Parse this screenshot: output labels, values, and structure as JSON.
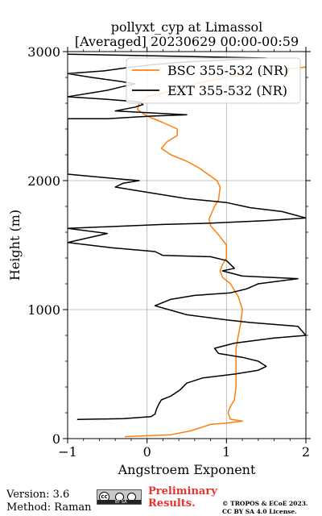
{
  "chart_data": {
    "type": "line",
    "title": "pollyxt_cyp at Limassol",
    "subtitle": "[Averaged] 20230629 00:00-00:59",
    "xlabel": "Angstroem Exponent",
    "ylabel": "Height (m)",
    "xlim": [
      -1,
      2
    ],
    "ylim": [
      0,
      3000
    ],
    "x_ticks": [
      "−1",
      "0",
      "1",
      "2"
    ],
    "y_ticks": [
      "0",
      "1000",
      "2000",
      "3000"
    ],
    "x_tick_values": [
      -1,
      0,
      1,
      2
    ],
    "y_tick_values": [
      0,
      1000,
      2000,
      3000
    ],
    "grid": true,
    "legend_position": "top-right",
    "series": [
      {
        "name": "BSC 355-532 (NR)",
        "color": "#ff7f0e",
        "points": [
          [
            -0.28,
            15
          ],
          [
            0.3,
            30
          ],
          [
            0.55,
            60
          ],
          [
            0.75,
            100
          ],
          [
            0.8,
            110
          ],
          [
            1.0,
            120
          ],
          [
            1.2,
            135
          ],
          [
            1.05,
            150
          ],
          [
            1.02,
            200
          ],
          [
            1.05,
            250
          ],
          [
            1.1,
            300
          ],
          [
            1.12,
            400
          ],
          [
            1.12,
            500
          ],
          [
            1.12,
            600
          ],
          [
            1.12,
            700
          ],
          [
            1.15,
            800
          ],
          [
            1.18,
            900
          ],
          [
            1.2,
            1000
          ],
          [
            1.15,
            1100
          ],
          [
            1.1,
            1150
          ],
          [
            1.05,
            1200
          ],
          [
            0.95,
            1250
          ],
          [
            0.92,
            1300
          ],
          [
            0.95,
            1350
          ],
          [
            1.0,
            1400
          ],
          [
            1.0,
            1500
          ],
          [
            0.9,
            1580
          ],
          [
            0.8,
            1650
          ],
          [
            0.78,
            1700
          ],
          [
            0.85,
            1800
          ],
          [
            0.9,
            1850
          ],
          [
            0.92,
            1950
          ],
          [
            0.88,
            2000
          ],
          [
            0.65,
            2100
          ],
          [
            0.5,
            2150
          ],
          [
            0.3,
            2200
          ],
          [
            0.18,
            2250
          ],
          [
            0.25,
            2300
          ],
          [
            0.38,
            2350
          ],
          [
            0.38,
            2400
          ],
          [
            0.2,
            2450
          ],
          [
            0.0,
            2500
          ],
          [
            -0.12,
            2550
          ],
          [
            -0.1,
            2600
          ],
          [
            0.0,
            2650
          ],
          [
            0.35,
            2700
          ],
          [
            0.6,
            2750
          ],
          [
            1.0,
            2800
          ],
          [
            1.5,
            2850
          ],
          [
            2.0,
            2880
          ]
        ]
      },
      {
        "name": "EXT 355-532 (NR)",
        "color": "#000000",
        "points": [
          [
            -0.88,
            148
          ],
          [
            -0.3,
            155
          ],
          [
            0.05,
            170
          ],
          [
            0.1,
            190
          ],
          [
            0.12,
            230
          ],
          [
            0.15,
            270
          ],
          [
            0.18,
            300
          ],
          [
            0.3,
            330
          ],
          [
            0.42,
            380
          ],
          [
            0.5,
            430
          ],
          [
            0.7,
            470
          ],
          [
            1.1,
            500
          ],
          [
            1.4,
            530
          ],
          [
            1.5,
            560
          ],
          [
            1.4,
            600
          ],
          [
            1.2,
            630
          ],
          [
            0.9,
            660
          ],
          [
            0.85,
            700
          ],
          [
            1.1,
            740
          ],
          [
            1.6,
            780
          ],
          [
            2.0,
            800
          ],
          [
            1.9,
            870
          ],
          [
            1.3,
            900
          ],
          [
            1.0,
            920
          ],
          [
            0.5,
            960
          ],
          [
            0.1,
            1030
          ],
          [
            0.3,
            1080
          ],
          [
            0.6,
            1110
          ],
          [
            1.05,
            1130
          ],
          [
            1.25,
            1160
          ],
          [
            1.4,
            1200
          ],
          [
            1.9,
            1240
          ],
          [
            1.2,
            1260
          ],
          [
            0.95,
            1300
          ],
          [
            1.1,
            1320
          ],
          [
            1.0,
            1380
          ],
          [
            0.8,
            1410
          ],
          [
            0.2,
            1420
          ],
          [
            0.1,
            1450
          ],
          [
            -0.45,
            1480
          ],
          [
            -1.0,
            1520
          ],
          [
            -0.5,
            1590
          ],
          [
            -1.0,
            1630
          ],
          [
            0.2,
            1660
          ],
          [
            0.8,
            1670
          ],
          [
            1.5,
            1690
          ],
          [
            2.0,
            1710
          ],
          [
            1.7,
            1760
          ],
          [
            1.3,
            1790
          ],
          [
            1.0,
            1830
          ],
          [
            0.5,
            1860
          ],
          [
            0.2,
            1890
          ],
          [
            -0.2,
            1930
          ],
          [
            -0.4,
            1950
          ],
          [
            -0.3,
            1980
          ],
          [
            -0.1,
            2000
          ],
          [
            -0.3,
            2010
          ],
          [
            -1.0,
            2050
          ],
          [
            -1.0,
            2200
          ],
          [
            -1.0,
            2480
          ],
          [
            -0.5,
            2480
          ],
          [
            0.05,
            2500
          ],
          [
            0.5,
            2510
          ],
          [
            -0.4,
            2540
          ],
          [
            -0.15,
            2570
          ],
          [
            -0.05,
            2590
          ],
          [
            -0.1,
            2610
          ],
          [
            -0.5,
            2630
          ],
          [
            -1.0,
            2650
          ],
          [
            -0.5,
            2700
          ],
          [
            -0.3,
            2730
          ],
          [
            -0.15,
            2750
          ],
          [
            -0.35,
            2770
          ],
          [
            -0.7,
            2800
          ],
          [
            -1.0,
            2830
          ],
          [
            -0.55,
            2850
          ],
          [
            -0.2,
            2880
          ],
          [
            0.1,
            2900
          ],
          [
            0.5,
            2920
          ],
          [
            1.5,
            2950
          ],
          [
            -1.0,
            2980
          ]
        ]
      }
    ]
  },
  "footer": {
    "version": "Version: 3.6",
    "method": "Method: Raman",
    "preliminary_line1": "Preliminary",
    "preliminary_line2": "Results.",
    "copyright_line1": "© TROPOS & ECoE 2023.",
    "copyright_line2": "CC BY SA 4.0 License.",
    "license_badge_text": "BY   SA"
  }
}
